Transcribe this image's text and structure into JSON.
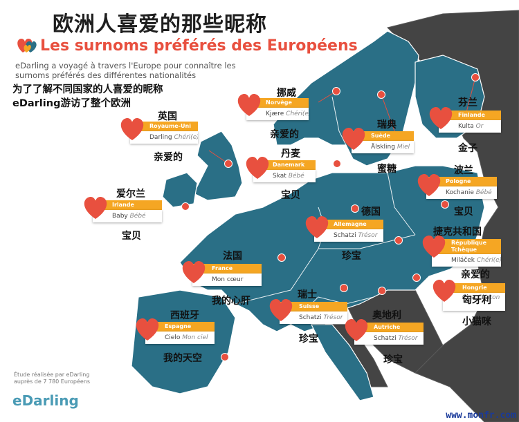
{
  "title_cn": "欧洲人喜爱的那些昵称",
  "title_fr": "Les surnoms préférés des Européens",
  "intro_fr": "eDarling a voyagé à travers l'Europe pour connaître les surnoms préférés des différentes nationalités",
  "intro_cn_line1": "为了了解不同国家的人喜爱的昵称",
  "intro_cn_line2": "eDarling游访了整个欧洲",
  "footnote_line1": "Étude réalisée par eDarling",
  "footnote_line2": "auprès de 7 780 Européens",
  "brand": "eDarling",
  "watermark": "www.monfr.com",
  "colors": {
    "sea": "#ffffff",
    "land_studied": "#2a6f86",
    "land_other": "#444444",
    "accent": "#f5a623",
    "heart": "#e8503f"
  },
  "countries": {
    "norway": {
      "cn": "挪威",
      "fr": "Norvège",
      "nick": "Kjære",
      "nick_fr": "Chéri(e)",
      "nick_cn": "亲爱的"
    },
    "uk": {
      "cn": "英国",
      "fr": "Royaume-Uni",
      "nick": "Darling",
      "nick_fr": "Chéri(e)",
      "nick_cn": "亲爱的"
    },
    "sweden": {
      "cn": "瑞典",
      "fr": "Suède",
      "nick": "Älskling",
      "nick_fr": "Miel",
      "nick_cn": "蜜糖"
    },
    "finland": {
      "cn": "芬兰",
      "fr": "Finlande",
      "nick": "Kulta",
      "nick_fr": "Or",
      "nick_cn": "金子"
    },
    "denmark": {
      "cn": "丹麦",
      "fr": "Danemark",
      "nick": "Skat",
      "nick_fr": "Bébé",
      "nick_cn": "宝贝"
    },
    "poland": {
      "cn": "波兰",
      "fr": "Pologne",
      "nick": "Kochanie",
      "nick_fr": "Bébé",
      "nick_cn": "宝贝"
    },
    "ireland": {
      "cn": "爱尔兰",
      "fr": "Irlande",
      "nick": "Baby",
      "nick_fr": "Bébé",
      "nick_cn": "宝贝"
    },
    "germany": {
      "cn": "德国",
      "fr": "Allemagne",
      "nick": "Schatzi",
      "nick_fr": "Trésor",
      "nick_cn": "珍宝"
    },
    "czech": {
      "cn": "捷克共和国",
      "fr": "République Tchèque",
      "nick": "Miláček",
      "nick_fr": "Chéri(e)",
      "nick_cn": "亲爱的"
    },
    "france": {
      "cn": "法国",
      "fr": "France",
      "nick": "Mon cœur",
      "nick_fr": "",
      "nick_cn": "我的心肝"
    },
    "hungary": {
      "cn": "匈牙利",
      "fr": "Hongrie",
      "nick": "Cica",
      "nick_fr": "Chaton",
      "nick_cn": "小猫咪"
    },
    "switzerland": {
      "cn": "瑞士",
      "fr": "Suisse",
      "nick": "Schatzi",
      "nick_fr": "Trésor",
      "nick_cn": "珍宝"
    },
    "austria": {
      "cn": "奥地利",
      "fr": "Autriche",
      "nick": "Schatzi",
      "nick_fr": "Trésor",
      "nick_cn": "珍宝"
    },
    "spain": {
      "cn": "西班牙",
      "fr": "Espagne",
      "nick": "Cielo",
      "nick_fr": "Mon ciel",
      "nick_cn": "我的天空"
    }
  }
}
